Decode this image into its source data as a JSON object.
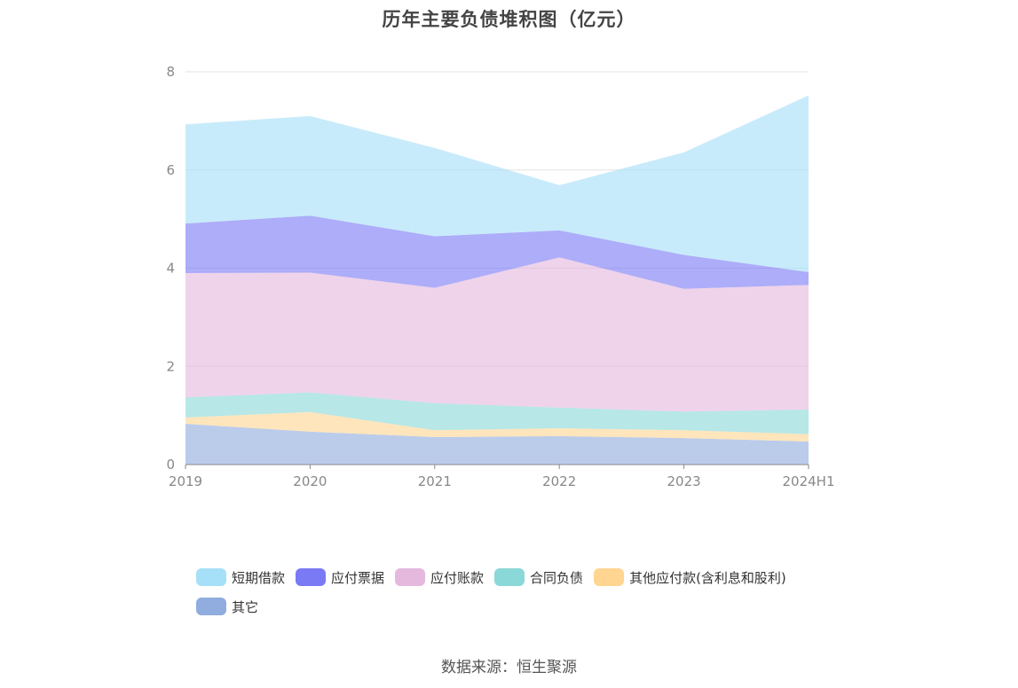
{
  "chart_data": {
    "type": "area",
    "stacked": true,
    "title": "历年主要负债堆积图（亿元）",
    "categories": [
      "2019",
      "2020",
      "2021",
      "2022",
      "2023",
      "2024H1"
    ],
    "ylim": [
      0,
      8
    ],
    "yticks": [
      0,
      2,
      4,
      6,
      8
    ],
    "grid": true,
    "legend_position": "bottom",
    "series": [
      {
        "name": "其它",
        "color": "#91acde",
        "values": [
          0.83,
          0.67,
          0.56,
          0.58,
          0.54,
          0.47
        ]
      },
      {
        "name": "其他应付款(含利息和股利)",
        "color": "#ffd591",
        "values": [
          0.13,
          0.4,
          0.14,
          0.16,
          0.16,
          0.15
        ]
      },
      {
        "name": "合同负债",
        "color": "#8ad8d8",
        "values": [
          0.41,
          0.4,
          0.55,
          0.42,
          0.38,
          0.5
        ]
      },
      {
        "name": "应付账款",
        "color": "#e5b8dd",
        "values": [
          2.53,
          2.44,
          2.35,
          3.06,
          2.5,
          2.54
        ]
      },
      {
        "name": "应付票据",
        "color": "#7a7af5",
        "values": [
          1.01,
          1.16,
          1.05,
          0.55,
          0.69,
          0.26
        ]
      },
      {
        "name": "短期借款",
        "color": "#a6dff8",
        "values": [
          2.02,
          2.03,
          1.8,
          0.92,
          2.09,
          3.6
        ]
      }
    ]
  },
  "legend": {
    "rows": [
      [
        "短期借款",
        "应付票据",
        "应付账款",
        "合同负债",
        "其他应付款(含利息和股利)"
      ],
      [
        "其它"
      ]
    ]
  },
  "source": "数据来源：恒生聚源"
}
